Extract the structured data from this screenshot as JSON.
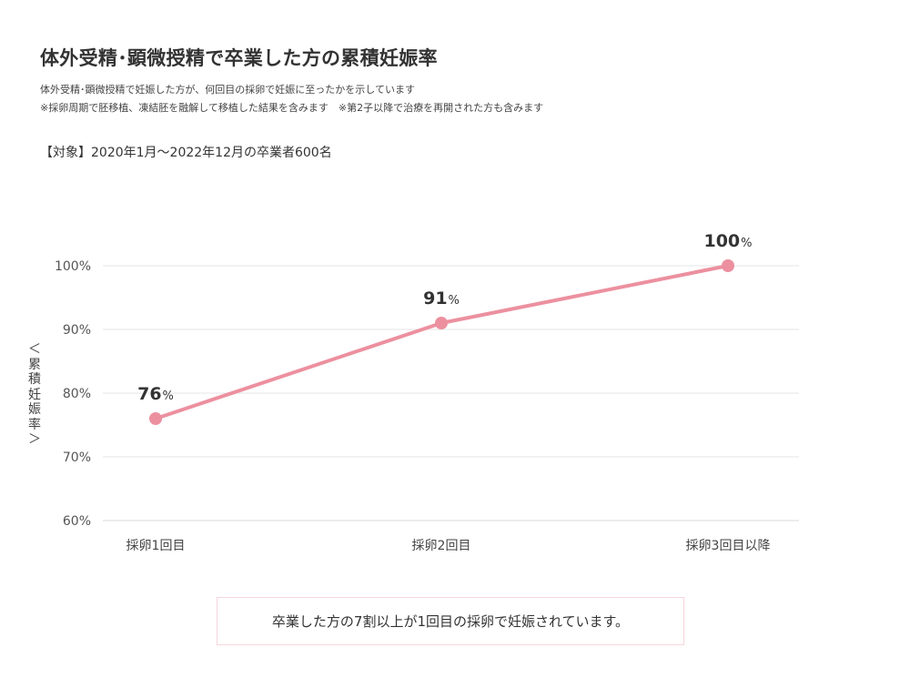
{
  "header": {
    "title": "体外受精･顕微授精で卒業した方の累積妊娠率",
    "note1": "体外受精･顕微授精で妊娠した方が、何回目の採卵で妊娠に至ったかを示しています",
    "note2": "※採卵周期で胚移植、凍結胚を融解して移植した結果を含みます　※第2子以降で治療を再開された方も含みます",
    "target": "【対象】2020年1月〜2022年12月の卒業者600名"
  },
  "summary": {
    "text": "卒業した方の7割以上が1回目の採卵で妊娠されています。"
  },
  "chart_data": {
    "type": "line",
    "categories": [
      "採卵1回目",
      "採卵2回目",
      "採卵3回目以降"
    ],
    "series": [
      {
        "values": [
          76,
          91,
          100
        ],
        "color": "#ec909f"
      }
    ],
    "data_labels": [
      {
        "number": "76",
        "unit": "%"
      },
      {
        "number": "91",
        "unit": "%"
      },
      {
        "number": "100",
        "unit": "%"
      }
    ],
    "ylabel": "＜累積妊娠率＞",
    "ylim": [
      60,
      100
    ],
    "yticks": [
      60,
      70,
      80,
      90,
      100
    ],
    "ytick_labels": [
      "60%",
      "70%",
      "80%",
      "90%",
      "100%"
    ],
    "grid": true,
    "colors": {
      "line": "#ec909f",
      "grid": "#e6e6e6",
      "axis": "#d9d9d9",
      "summary_border": "#f7d5dc"
    }
  }
}
